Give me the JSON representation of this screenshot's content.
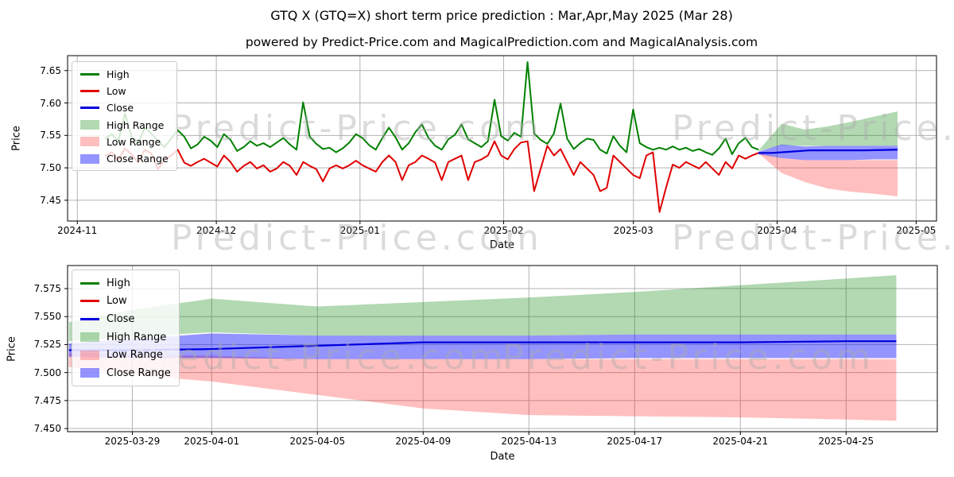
{
  "figure": {
    "title": "GTQ X (GTQ=X) short term price prediction : Mar,Apr,May 2025 (Mar 28)",
    "subtitle": "powered by Predict-Price.com and MagicalPrediction.com and MagicalAnalysis.com"
  },
  "watermark_text": "Predict-Price.com",
  "colors": {
    "high_line": "#008000",
    "low_line": "#e00000",
    "close_line": "#0000dd",
    "high_range_fill": "rgba(0,128,0,0.30)",
    "low_range_fill": "rgba(255,0,0,0.25)",
    "close_range_fill": "rgba(0,0,255,0.42)",
    "grid": "#b3b3b3",
    "spine": "#000000",
    "watermark": "#ababab"
  },
  "legend": [
    {
      "label": "High",
      "swatch": "line",
      "color": "#008000"
    },
    {
      "label": "Low",
      "swatch": "line",
      "color": "#e00000"
    },
    {
      "label": "Close",
      "swatch": "line",
      "color": "#0000dd"
    },
    {
      "label": "High Range",
      "swatch": "patch",
      "color": "rgba(0,128,0,0.30)"
    },
    {
      "label": "Low Range",
      "swatch": "patch",
      "color": "rgba(255,0,0,0.25)"
    },
    {
      "label": "Close Range",
      "swatch": "patch",
      "color": "rgba(0,0,255,0.42)"
    }
  ],
  "chart_data": [
    {
      "type": "line",
      "name": "history-and-prediction",
      "xlabel": "Date",
      "ylabel": "Price",
      "x_unit": "days_since_2024-11-01",
      "xlim": [
        -2.1,
        185.4
      ],
      "ylim": [
        7.418,
        7.673
      ],
      "x_ticks": [
        {
          "d": 0,
          "label": "2024-11"
        },
        {
          "d": 30,
          "label": "2024-12"
        },
        {
          "d": 61,
          "label": "2025-01"
        },
        {
          "d": 92,
          "label": "2025-02"
        },
        {
          "d": 120,
          "label": "2025-03"
        },
        {
          "d": 151,
          "label": "2025-04"
        },
        {
          "d": 181,
          "label": "2025-05"
        }
      ],
      "y_ticks": [
        {
          "v": 7.45,
          "label": "7.45"
        },
        {
          "v": 7.5,
          "label": "7.50"
        },
        {
          "v": 7.55,
          "label": "7.55"
        },
        {
          "v": 7.6,
          "label": "7.60"
        },
        {
          "v": 7.65,
          "label": "7.65"
        }
      ],
      "history": {
        "x_start": 6,
        "x_end": 147,
        "high": [
          7.545,
          7.552,
          7.541,
          7.584,
          7.548,
          7.538,
          7.562,
          7.553,
          7.542,
          7.532,
          7.545,
          7.558,
          7.548,
          7.53,
          7.536,
          7.548,
          7.542,
          7.532,
          7.552,
          7.543,
          7.526,
          7.532,
          7.541,
          7.534,
          7.538,
          7.532,
          7.539,
          7.546,
          7.536,
          7.528,
          7.601,
          7.548,
          7.537,
          7.529,
          7.531,
          7.524,
          7.53,
          7.539,
          7.552,
          7.546,
          7.535,
          7.528,
          7.546,
          7.562,
          7.547,
          7.528,
          7.538,
          7.555,
          7.567,
          7.546,
          7.534,
          7.528,
          7.544,
          7.551,
          7.567,
          7.544,
          7.538,
          7.532,
          7.541,
          7.605,
          7.549,
          7.542,
          7.554,
          7.548,
          7.663,
          7.553,
          7.543,
          7.537,
          7.553,
          7.599,
          7.545,
          7.529,
          7.538,
          7.545,
          7.543,
          7.528,
          7.522,
          7.549,
          7.534,
          7.524,
          7.59,
          7.538,
          7.532,
          7.528,
          7.531,
          7.528,
          7.533,
          7.528,
          7.531,
          7.526,
          7.529,
          7.524,
          7.52,
          7.53,
          7.545,
          7.521,
          7.538,
          7.546,
          7.532,
          7.528
        ],
        "low": [
          7.518,
          7.524,
          7.512,
          7.53,
          7.521,
          7.508,
          7.528,
          7.522,
          7.498,
          7.512,
          7.519,
          7.528,
          7.508,
          7.503,
          7.509,
          7.514,
          7.508,
          7.502,
          7.519,
          7.509,
          7.494,
          7.503,
          7.509,
          7.499,
          7.504,
          7.494,
          7.499,
          7.509,
          7.503,
          7.489,
          7.509,
          7.503,
          7.498,
          7.479,
          7.499,
          7.504,
          7.499,
          7.504,
          7.511,
          7.504,
          7.499,
          7.494,
          7.509,
          7.519,
          7.509,
          7.481,
          7.504,
          7.509,
          7.519,
          7.514,
          7.508,
          7.481,
          7.509,
          7.514,
          7.519,
          7.481,
          7.509,
          7.513,
          7.519,
          7.541,
          7.519,
          7.513,
          7.529,
          7.539,
          7.541,
          7.464,
          7.499,
          7.534,
          7.519,
          7.529,
          7.509,
          7.489,
          7.509,
          7.499,
          7.489,
          7.464,
          7.469,
          7.519,
          7.509,
          7.499,
          7.489,
          7.484,
          7.519,
          7.524,
          7.432,
          7.47,
          7.505,
          7.5,
          7.509,
          7.504,
          7.499,
          7.509,
          7.499,
          7.489,
          7.509,
          7.499,
          7.519,
          7.514,
          7.519,
          7.523
        ]
      },
      "prediction": {
        "x": [
          147,
          152,
          157,
          162,
          167,
          172,
          177
        ],
        "high_range_top": [
          7.527,
          7.568,
          7.559,
          7.564,
          7.571,
          7.579,
          7.587
        ],
        "high_range_bottom": [
          7.526,
          7.535,
          7.534,
          7.534,
          7.534,
          7.534,
          7.534
        ],
        "low_range_top": [
          7.523,
          7.515,
          7.512,
          7.512,
          7.512,
          7.512,
          7.512
        ],
        "low_range_bottom": [
          7.522,
          7.492,
          7.478,
          7.468,
          7.463,
          7.46,
          7.456
        ],
        "close_range_top": [
          7.525,
          7.536,
          7.533,
          7.534,
          7.534,
          7.534,
          7.534
        ],
        "close_range_bottom": [
          7.521,
          7.515,
          7.512,
          7.512,
          7.512,
          7.513,
          7.513
        ],
        "close_x": [
          147,
          150,
          154,
          158,
          163,
          170,
          177
        ],
        "close": [
          7.523,
          7.523,
          7.525,
          7.527,
          7.527,
          7.527,
          7.528
        ]
      }
    },
    {
      "type": "line",
      "name": "prediction-zoom",
      "xlabel": "Date",
      "ylabel": "Price",
      "x_unit": "days_since_2024-11-01",
      "xlim": [
        145.55,
        178.45
      ],
      "ylim": [
        7.4472,
        7.5956
      ],
      "x_ticks": [
        {
          "d": 148,
          "label": "2025-03-29"
        },
        {
          "d": 151,
          "label": "2025-04-01"
        },
        {
          "d": 155,
          "label": "2025-04-05"
        },
        {
          "d": 159,
          "label": "2025-04-09"
        },
        {
          "d": 163,
          "label": "2025-04-13"
        },
        {
          "d": 167,
          "label": "2025-04-17"
        },
        {
          "d": 171,
          "label": "2025-04-21"
        },
        {
          "d": 175,
          "label": "2025-04-25"
        }
      ],
      "y_ticks": [
        {
          "v": 7.45,
          "label": "7.450"
        },
        {
          "v": 7.475,
          "label": "7.475"
        },
        {
          "v": 7.5,
          "label": "7.500"
        },
        {
          "v": 7.525,
          "label": "7.525"
        },
        {
          "v": 7.55,
          "label": "7.550"
        },
        {
          "v": 7.575,
          "label": "7.575"
        }
      ],
      "prediction": {
        "x": [
          145.6,
          148,
          151,
          155,
          159,
          163,
          167,
          171,
          175,
          176.9
        ],
        "high_range_top": [
          7.545,
          7.556,
          7.566,
          7.559,
          7.563,
          7.567,
          7.572,
          7.578,
          7.584,
          7.587
        ],
        "high_range_bottom": [
          7.528,
          7.532,
          7.536,
          7.533,
          7.533,
          7.533,
          7.534,
          7.534,
          7.534,
          7.534
        ],
        "low_range_top": [
          7.518,
          7.516,
          7.515,
          7.512,
          7.512,
          7.512,
          7.512,
          7.512,
          7.512,
          7.512
        ],
        "low_range_bottom": [
          7.505,
          7.498,
          7.492,
          7.48,
          7.468,
          7.462,
          7.461,
          7.46,
          7.458,
          7.457
        ],
        "close_range_top": [
          7.526,
          7.53,
          7.535,
          7.533,
          7.533,
          7.533,
          7.534,
          7.534,
          7.534,
          7.534
        ],
        "close_range_bottom": [
          7.514,
          7.513,
          7.513,
          7.512,
          7.512,
          7.512,
          7.513,
          7.513,
          7.513,
          7.513
        ],
        "close_x": [
          145.6,
          148,
          151,
          155,
          159,
          163,
          167,
          171,
          175,
          176.9
        ],
        "close": [
          7.52,
          7.52,
          7.521,
          7.524,
          7.527,
          7.527,
          7.527,
          7.527,
          7.528,
          7.528
        ]
      }
    }
  ]
}
